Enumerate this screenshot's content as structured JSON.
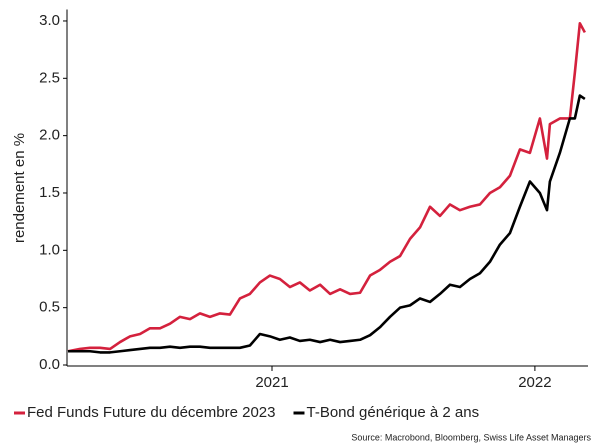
{
  "chart_data": {
    "type": "line",
    "y_label": "rendement en %",
    "source": "Source: Macrobond, Bloomberg, Swiss Life Asset Managers",
    "x": [
      2020.224,
      2020.27,
      2020.308,
      2020.346,
      2020.384,
      2020.422,
      2020.46,
      2020.498,
      2020.536,
      2020.574,
      2020.612,
      2020.65,
      2020.688,
      2020.726,
      2020.764,
      2020.802,
      2020.84,
      2020.878,
      2020.916,
      2020.954,
      2020.992,
      2021.03,
      2021.068,
      2021.106,
      2021.144,
      2021.183,
      2021.221,
      2021.259,
      2021.297,
      2021.335,
      2021.373,
      2021.411,
      2021.449,
      2021.487,
      2021.525,
      2021.563,
      2021.601,
      2021.639,
      2021.677,
      2021.715,
      2021.753,
      2021.791,
      2021.829,
      2021.867,
      2021.905,
      2021.943,
      2021.981,
      2022.019,
      2022.046,
      2022.057,
      2022.095,
      2022.133,
      2022.152,
      2022.171,
      2022.19
    ],
    "series": [
      {
        "name": "Fed Funds Future du décembre 2023",
        "color": "#d4213d",
        "values": [
          0.12,
          0.14,
          0.15,
          0.15,
          0.14,
          0.2,
          0.25,
          0.27,
          0.32,
          0.32,
          0.36,
          0.42,
          0.4,
          0.45,
          0.42,
          0.45,
          0.44,
          0.58,
          0.62,
          0.72,
          0.78,
          0.75,
          0.68,
          0.72,
          0.65,
          0.7,
          0.62,
          0.66,
          0.62,
          0.63,
          0.78,
          0.83,
          0.9,
          0.95,
          1.1,
          1.2,
          1.38,
          1.3,
          1.4,
          1.35,
          1.38,
          1.4,
          1.5,
          1.55,
          1.65,
          1.88,
          1.85,
          2.15,
          1.8,
          2.1,
          2.15,
          2.15,
          2.55,
          2.98,
          2.9
        ]
      },
      {
        "name": "T-Bond générique à 2 ans",
        "color": "#000000",
        "values": [
          0.12,
          0.12,
          0.12,
          0.11,
          0.11,
          0.12,
          0.13,
          0.14,
          0.15,
          0.15,
          0.16,
          0.15,
          0.16,
          0.16,
          0.15,
          0.15,
          0.15,
          0.15,
          0.17,
          0.27,
          0.25,
          0.22,
          0.24,
          0.21,
          0.22,
          0.2,
          0.22,
          0.2,
          0.21,
          0.22,
          0.26,
          0.33,
          0.42,
          0.5,
          0.52,
          0.58,
          0.55,
          0.62,
          0.7,
          0.68,
          0.75,
          0.8,
          0.9,
          1.05,
          1.15,
          1.38,
          1.6,
          1.5,
          1.35,
          1.6,
          1.85,
          2.15,
          2.15,
          2.35,
          2.32
        ]
      }
    ],
    "xlim": [
      2020.224,
      2022.202
    ],
    "xticks": [
      2021,
      2022
    ],
    "ylim": [
      0,
      3.1
    ],
    "yticks": [
      {
        "value": 0,
        "label": "0.0"
      },
      0.5,
      {
        "value": 1,
        "label": "1.0"
      },
      1.5,
      {
        "value": 2,
        "label": "2.0"
      },
      2.5,
      {
        "value": 3,
        "label": "3.0"
      }
    ],
    "grid": false,
    "legend": "bottom"
  }
}
